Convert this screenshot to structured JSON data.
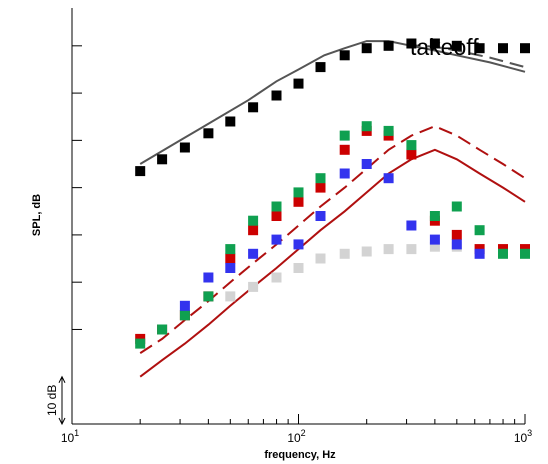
{
  "chart_data": {
    "type": "scatter",
    "title": "",
    "xlabel": "frequency, Hz",
    "ylabel": "SPL, dB",
    "x_scale": "log",
    "xlim": [
      10,
      1000
    ],
    "ylim": [
      -20,
      68
    ],
    "y_tick_values": [
      0,
      10,
      20,
      30,
      40,
      50,
      60
    ],
    "x_ticks": [
      {
        "value": 10,
        "base": "10",
        "exp": "1"
      },
      {
        "value": 100,
        "base": "10",
        "exp": "2"
      },
      {
        "value": 1000,
        "base": "10",
        "exp": "3"
      }
    ],
    "annotation": "takeoff",
    "scale_bar": {
      "label": "10 dB",
      "from": -20,
      "to": -10
    },
    "grid": false,
    "legend": "none",
    "series": [
      {
        "style": "markers",
        "color": "#000000",
        "x": [
          20,
          25,
          31.5,
          40,
          50,
          63,
          80,
          100,
          125,
          160,
          200,
          250,
          315,
          400,
          500,
          630,
          800,
          1000
        ],
        "y": [
          33.5,
          36,
          38.5,
          41.5,
          44,
          47,
          49.5,
          52,
          55.5,
          58,
          59.5,
          60,
          60.5,
          60.5,
          60,
          59.5,
          59.5,
          59.5
        ]
      },
      {
        "style": "markers",
        "color": "#d3d3d3",
        "x": [
          50,
          63,
          80,
          100,
          125,
          160,
          200,
          250,
          315,
          400,
          500,
          630,
          800,
          1000
        ],
        "y": [
          7,
          9,
          11,
          13,
          15,
          16,
          16.5,
          17,
          17,
          17.5,
          17.5,
          17,
          17,
          17
        ]
      },
      {
        "style": "markers",
        "color": "#cc0000",
        "x": [
          20,
          25,
          31.5,
          40,
          50,
          63,
          80,
          100,
          125,
          160,
          200,
          250,
          315,
          400,
          500,
          630,
          800,
          1000
        ],
        "y": [
          -2,
          0,
          3,
          7,
          15,
          21,
          24,
          27,
          30,
          38,
          42,
          41,
          37,
          23,
          20,
          17,
          17,
          17
        ]
      },
      {
        "style": "markers",
        "color": "#0fa050",
        "x": [
          20,
          25,
          31.5,
          40,
          50,
          63,
          80,
          100,
          125,
          160,
          200,
          250,
          315,
          400,
          500,
          630,
          800,
          1000
        ],
        "y": [
          -3,
          0,
          3,
          7,
          17,
          23,
          26,
          29,
          32,
          41,
          43,
          42,
          39,
          24,
          26,
          21,
          16,
          16
        ]
      },
      {
        "style": "markers",
        "color": "#3333ee",
        "x": [
          31.5,
          40,
          50,
          63,
          80,
          100,
          125,
          160,
          200,
          250,
          315,
          400,
          500,
          630
        ],
        "y": [
          5,
          11,
          13,
          16,
          19,
          18,
          24,
          33,
          35,
          32,
          22,
          19,
          18,
          16
        ]
      },
      {
        "style": "solid",
        "color": "#555555",
        "x": [
          20,
          30,
          40,
          60,
          80,
          100,
          130,
          160,
          200,
          250,
          315,
          400,
          500,
          700,
          1000
        ],
        "y": [
          35,
          40,
          43.5,
          48.5,
          52.5,
          55,
          58,
          59.5,
          61,
          61,
          60,
          59,
          58,
          56.5,
          54.5
        ]
      },
      {
        "style": "dashed",
        "color": "#555555",
        "x": [
          300,
          400,
          500,
          700,
          1000
        ],
        "y": [
          60.2,
          59.8,
          59,
          57.5,
          55.5
        ]
      },
      {
        "style": "dashed",
        "color": "#b01010",
        "x": [
          20,
          25,
          31.5,
          40,
          50,
          63,
          80,
          100,
          125,
          160,
          200,
          250,
          315,
          400,
          500,
          630,
          800,
          1000
        ],
        "y": [
          -5,
          -2,
          2,
          6,
          10,
          14,
          18,
          22,
          26,
          30,
          34,
          38,
          41,
          43,
          41,
          38,
          35,
          32
        ]
      },
      {
        "style": "solid",
        "color": "#b01010",
        "x": [
          20,
          25,
          31.5,
          40,
          50,
          63,
          80,
          100,
          125,
          160,
          200,
          250,
          315,
          400,
          500,
          630,
          800,
          1000
        ],
        "y": [
          -10,
          -6.5,
          -3,
          1,
          5,
          9,
          13,
          17,
          21,
          25,
          29,
          33,
          36,
          38,
          36,
          33,
          30,
          27
        ]
      }
    ]
  }
}
